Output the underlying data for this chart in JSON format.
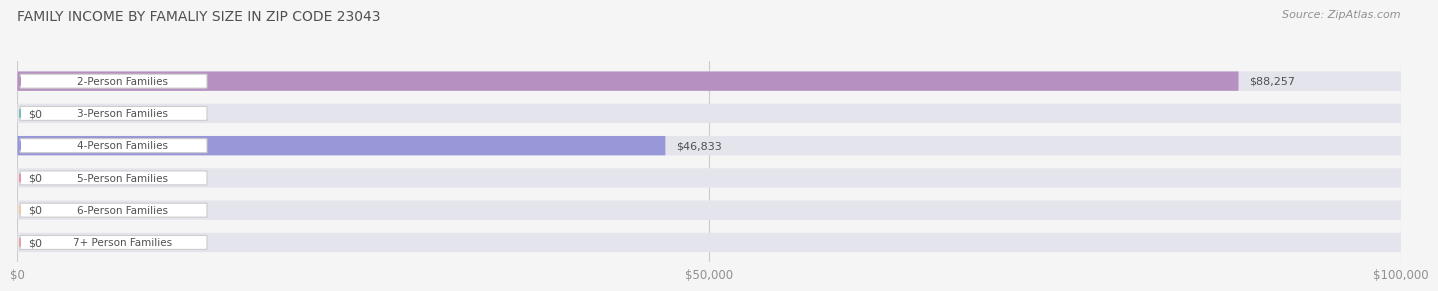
{
  "title": "FAMILY INCOME BY FAMALIY SIZE IN ZIP CODE 23043",
  "source": "Source: ZipAtlas.com",
  "categories": [
    "2-Person Families",
    "3-Person Families",
    "4-Person Families",
    "5-Person Families",
    "6-Person Families",
    "7+ Person Families"
  ],
  "values": [
    88257,
    0,
    46833,
    0,
    0,
    0
  ],
  "bar_colors": [
    "#b590c0",
    "#70c0b8",
    "#9898d8",
    "#f090a0",
    "#f5c898",
    "#e8a0a0"
  ],
  "value_labels": [
    "$88,257",
    "$0",
    "$46,833",
    "$0",
    "$0",
    "$0"
  ],
  "xlim": [
    0,
    100000
  ],
  "xticks": [
    0,
    50000,
    100000
  ],
  "xtick_labels": [
    "$0",
    "$50,000",
    "$100,000"
  ],
  "background_color": "#f5f5f5",
  "bar_background_color": "#e4e4ec",
  "title_color": "#505050",
  "source_color": "#909090",
  "label_text_color": "#505050",
  "value_text_color": "#505050"
}
